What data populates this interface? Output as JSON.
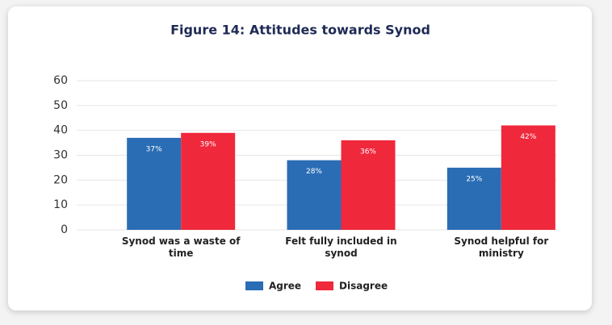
{
  "chart_data": {
    "type": "bar",
    "title": "Figure 14: Attitudes towards Synod",
    "categories": [
      "Synod was a waste of time",
      "Felt fully included in synod",
      "Synod helpful for ministry"
    ],
    "series": [
      {
        "name": "Agree",
        "color": "#2a6db5",
        "values": [
          37,
          28,
          25
        ],
        "value_labels": [
          "37%",
          "28%",
          "25%"
        ]
      },
      {
        "name": "Disagree",
        "color": "#f0283c",
        "values": [
          39,
          36,
          42
        ],
        "value_labels": [
          "39%",
          "36%",
          "42%"
        ]
      }
    ],
    "ylim": [
      0,
      60
    ],
    "yticks": [
      0,
      10,
      20,
      30,
      40,
      50,
      60
    ],
    "grid": true,
    "legend": "bottom"
  }
}
